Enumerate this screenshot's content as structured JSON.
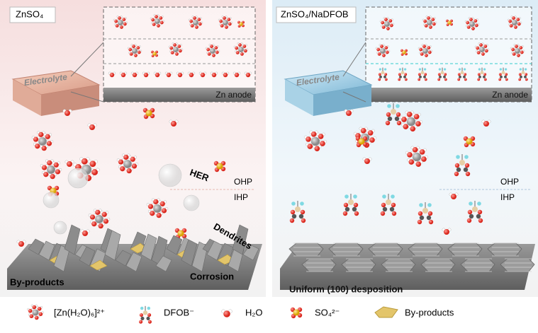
{
  "left_panel": {
    "title": "ZnSO₄",
    "electrolyte": "Electrolyte",
    "anode": "Zn anode",
    "labels": {
      "her": "HER",
      "ohp": "OHP",
      "ihp": "IHP",
      "dendrites": "Dendrites",
      "byproducts": "By-products",
      "corrosion": "Corrosion"
    }
  },
  "right_panel": {
    "title": "ZnSO₄/NaDFOB",
    "electrolyte": "Electrolyte",
    "anode": "Zn anode",
    "labels": {
      "ohp": "OHP",
      "ihp": "IHP",
      "deposition": "Uniform (100) desposition"
    }
  },
  "legend": [
    "[Zn(H₂O)₆]²⁺",
    "DFOB⁻",
    "H₂O",
    "SO₄²⁻",
    "By-products"
  ]
}
